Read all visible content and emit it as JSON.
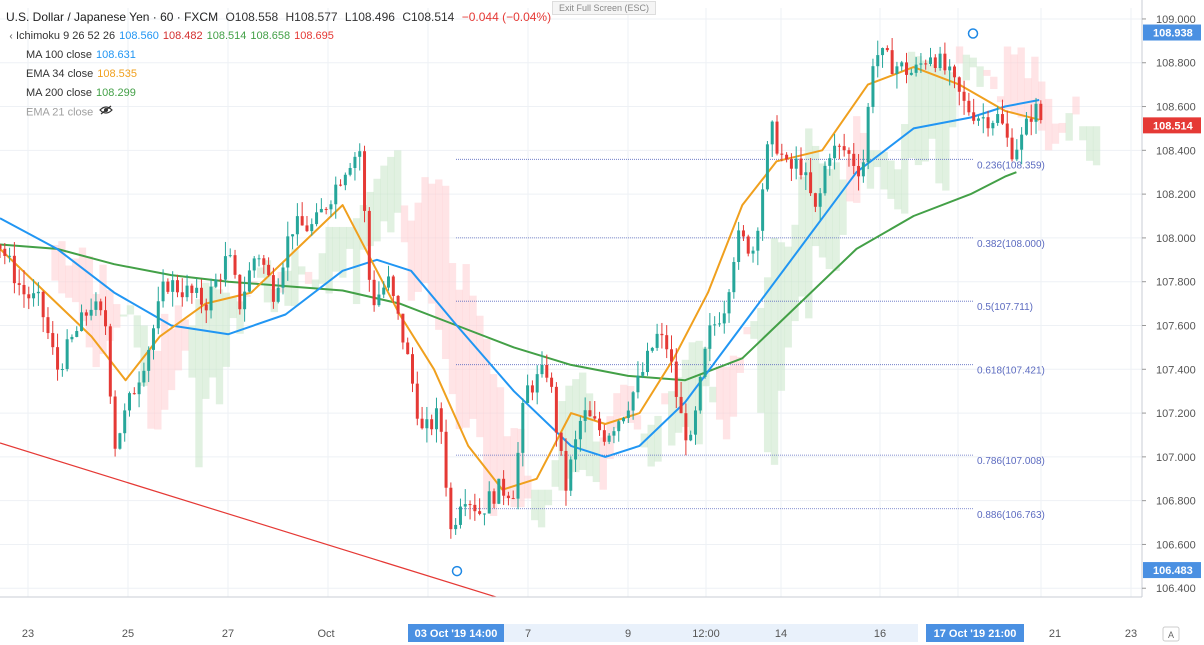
{
  "header": {
    "symbol": "U.S. Dollar / Japanese Yen · 60 · FXCM",
    "open": "O108.558",
    "high": "H108.577",
    "low": "L108.496",
    "close": "C108.514",
    "change": "−0.044 (−0.04%)"
  },
  "exit_fullscreen": "Exit Full Screen (ESC)",
  "indicators": [
    {
      "label": "Ichimoku 9 26 52 26",
      "values": [
        "108.560",
        "108.482",
        "108.514",
        "108.658",
        "108.695"
      ],
      "colors": [
        "#2196f3",
        "#d32f2f",
        "#43a047",
        "#43a047",
        "#e53935"
      ]
    },
    {
      "label": "MA 100 close",
      "values": [
        "108.631"
      ],
      "colors": [
        "#2196f3"
      ]
    },
    {
      "label": "EMA 34 close",
      "values": [
        "108.535"
      ],
      "colors": [
        "#f0a01e"
      ]
    },
    {
      "label": "MA 200 close",
      "values": [
        "108.299"
      ],
      "colors": [
        "#43a047"
      ]
    },
    {
      "label": "EMA 21 close",
      "values": [],
      "colors": [],
      "hidden": true
    }
  ],
  "colors": {
    "up": "#26a69a",
    "down": "#e53935",
    "ma100": "#2196f3",
    "ema34": "#f0a01e",
    "ma200": "#43a047",
    "trend": "#e53935",
    "fib": "#5c6bc0",
    "cloud_bull": "#c8e6c9",
    "cloud_bear": "#ffcdd2",
    "price_tag": "#e53935",
    "axis_highlight": "#4a90e2"
  },
  "chart_data": {
    "type": "candlestick",
    "instrument": "U.S. Dollar / Japanese Yen",
    "timeframe": "60",
    "y_axis": {
      "ylim": [
        106.36,
        109.05
      ],
      "ticks": [
        "109.000",
        "108.800",
        "108.600",
        "108.400",
        "108.200",
        "108.000",
        "107.800",
        "107.600",
        "107.400",
        "107.200",
        "107.000",
        "106.800",
        "106.600",
        "106.400"
      ]
    },
    "x_axis": {
      "tick_labels": [
        "23",
        "25",
        "27",
        "Oct",
        "7",
        "9",
        "12:00",
        "14",
        "16",
        "21",
        "23"
      ],
      "highlight_labels": [
        "03 Oct '19   14:00",
        "17 Oct '19   21:00"
      ]
    },
    "price_labels": [
      {
        "value": 108.938,
        "label": "108.938",
        "style": "blue"
      },
      {
        "value": 108.514,
        "label": "108.514",
        "style": "red"
      },
      {
        "value": 106.483,
        "label": "106.483",
        "style": "blue"
      }
    ],
    "fibonacci": [
      {
        "ratio": "0.236",
        "value": 108.359,
        "label": "0.236(108.359)"
      },
      {
        "ratio": "0.382",
        "value": 108.0,
        "label": "0.382(108.000)"
      },
      {
        "ratio": "0.5",
        "value": 107.711,
        "label": "0.5(107.711)"
      },
      {
        "ratio": "0.618",
        "value": 107.421,
        "label": "0.618(107.421)"
      },
      {
        "ratio": "0.786",
        "value": 107.008,
        "label": "0.786(107.008)"
      },
      {
        "ratio": "0.886",
        "value": 106.763,
        "label": "0.886(106.763)"
      }
    ],
    "swing_points": [
      {
        "name": "low",
        "value": 106.483
      },
      {
        "name": "high",
        "value": 108.938
      }
    ],
    "close_path": [
      [
        0,
        107.97
      ],
      [
        0.02,
        107.75
      ],
      [
        0.035,
        107.7
      ],
      [
        0.05,
        107.4
      ],
      [
        0.065,
        107.55
      ],
      [
        0.08,
        107.7
      ],
      [
        0.093,
        107.6
      ],
      [
        0.1,
        107.05
      ],
      [
        0.11,
        107.2
      ],
      [
        0.13,
        107.5
      ],
      [
        0.145,
        107.8
      ],
      [
        0.165,
        107.75
      ],
      [
        0.18,
        107.7
      ],
      [
        0.2,
        107.92
      ],
      [
        0.21,
        107.7
      ],
      [
        0.225,
        107.95
      ],
      [
        0.24,
        107.75
      ],
      [
        0.255,
        108.05
      ],
      [
        0.275,
        108.05
      ],
      [
        0.29,
        108.2
      ],
      [
        0.305,
        108.35
      ],
      [
        0.315,
        108.4
      ],
      [
        0.325,
        107.7
      ],
      [
        0.34,
        107.8
      ],
      [
        0.355,
        107.5
      ],
      [
        0.37,
        107.1
      ],
      [
        0.385,
        107.2
      ],
      [
        0.395,
        106.65
      ],
      [
        0.405,
        106.85
      ],
      [
        0.42,
        106.75
      ],
      [
        0.435,
        106.85
      ],
      [
        0.45,
        106.85
      ],
      [
        0.46,
        107.3
      ],
      [
        0.48,
        107.4
      ],
      [
        0.495,
        106.85
      ],
      [
        0.51,
        107.2
      ],
      [
        0.53,
        107.1
      ],
      [
        0.545,
        107.2
      ],
      [
        0.56,
        107.35
      ],
      [
        0.575,
        107.55
      ],
      [
        0.585,
        107.5
      ],
      [
        0.595,
        107.2
      ],
      [
        0.605,
        107.05
      ],
      [
        0.62,
        107.55
      ],
      [
        0.635,
        107.7
      ],
      [
        0.645,
        108.0
      ],
      [
        0.66,
        107.95
      ],
      [
        0.675,
        108.5
      ],
      [
        0.69,
        108.3
      ],
      [
        0.7,
        108.35
      ],
      [
        0.715,
        108.1
      ],
      [
        0.725,
        108.4
      ],
      [
        0.74,
        108.4
      ],
      [
        0.755,
        108.3
      ],
      [
        0.765,
        108.85
      ],
      [
        0.78,
        108.8
      ],
      [
        0.8,
        108.75
      ],
      [
        0.815,
        108.85
      ],
      [
        0.83,
        108.75
      ],
      [
        0.845,
        108.6
      ],
      [
        0.86,
        108.55
      ],
      [
        0.875,
        108.55
      ],
      [
        0.885,
        108.4
      ],
      [
        0.895,
        108.45
      ],
      [
        0.905,
        108.6
      ],
      [
        0.915,
        108.51
      ]
    ],
    "moving_averages": {
      "ma100": [
        [
          0,
          108.09
        ],
        [
          0.05,
          107.95
        ],
        [
          0.1,
          107.75
        ],
        [
          0.15,
          107.6
        ],
        [
          0.2,
          107.56
        ],
        [
          0.25,
          107.65
        ],
        [
          0.3,
          107.85
        ],
        [
          0.33,
          107.9
        ],
        [
          0.36,
          107.85
        ],
        [
          0.4,
          107.6
        ],
        [
          0.45,
          107.3
        ],
        [
          0.5,
          107.05
        ],
        [
          0.53,
          107.0
        ],
        [
          0.56,
          107.05
        ],
        [
          0.6,
          107.25
        ],
        [
          0.65,
          107.6
        ],
        [
          0.7,
          107.95
        ],
        [
          0.75,
          108.3
        ],
        [
          0.8,
          108.5
        ],
        [
          0.85,
          108.55
        ],
        [
          0.88,
          108.6
        ],
        [
          0.91,
          108.63
        ]
      ],
      "ema34": [
        [
          0,
          107.95
        ],
        [
          0.04,
          107.75
        ],
        [
          0.08,
          107.55
        ],
        [
          0.11,
          107.35
        ],
        [
          0.14,
          107.55
        ],
        [
          0.18,
          107.7
        ],
        [
          0.22,
          107.75
        ],
        [
          0.26,
          107.95
        ],
        [
          0.3,
          108.15
        ],
        [
          0.32,
          107.95
        ],
        [
          0.35,
          107.65
        ],
        [
          0.38,
          107.4
        ],
        [
          0.41,
          107.05
        ],
        [
          0.44,
          106.85
        ],
        [
          0.47,
          106.9
        ],
        [
          0.5,
          107.2
        ],
        [
          0.53,
          107.15
        ],
        [
          0.56,
          107.2
        ],
        [
          0.59,
          107.45
        ],
        [
          0.62,
          107.75
        ],
        [
          0.65,
          108.15
        ],
        [
          0.68,
          108.35
        ],
        [
          0.72,
          108.4
        ],
        [
          0.76,
          108.7
        ],
        [
          0.8,
          108.78
        ],
        [
          0.84,
          108.7
        ],
        [
          0.88,
          108.58
        ],
        [
          0.91,
          108.54
        ]
      ],
      "ma200": [
        [
          0,
          107.97
        ],
        [
          0.05,
          107.95
        ],
        [
          0.1,
          107.88
        ],
        [
          0.15,
          107.83
        ],
        [
          0.2,
          107.8
        ],
        [
          0.25,
          107.78
        ],
        [
          0.3,
          107.76
        ],
        [
          0.35,
          107.7
        ],
        [
          0.4,
          107.6
        ],
        [
          0.45,
          107.5
        ],
        [
          0.5,
          107.42
        ],
        [
          0.55,
          107.37
        ],
        [
          0.6,
          107.35
        ],
        [
          0.65,
          107.45
        ],
        [
          0.7,
          107.7
        ],
        [
          0.75,
          107.95
        ],
        [
          0.8,
          108.1
        ],
        [
          0.85,
          108.2
        ],
        [
          0.88,
          108.28
        ],
        [
          0.89,
          108.3
        ]
      ]
    }
  }
}
